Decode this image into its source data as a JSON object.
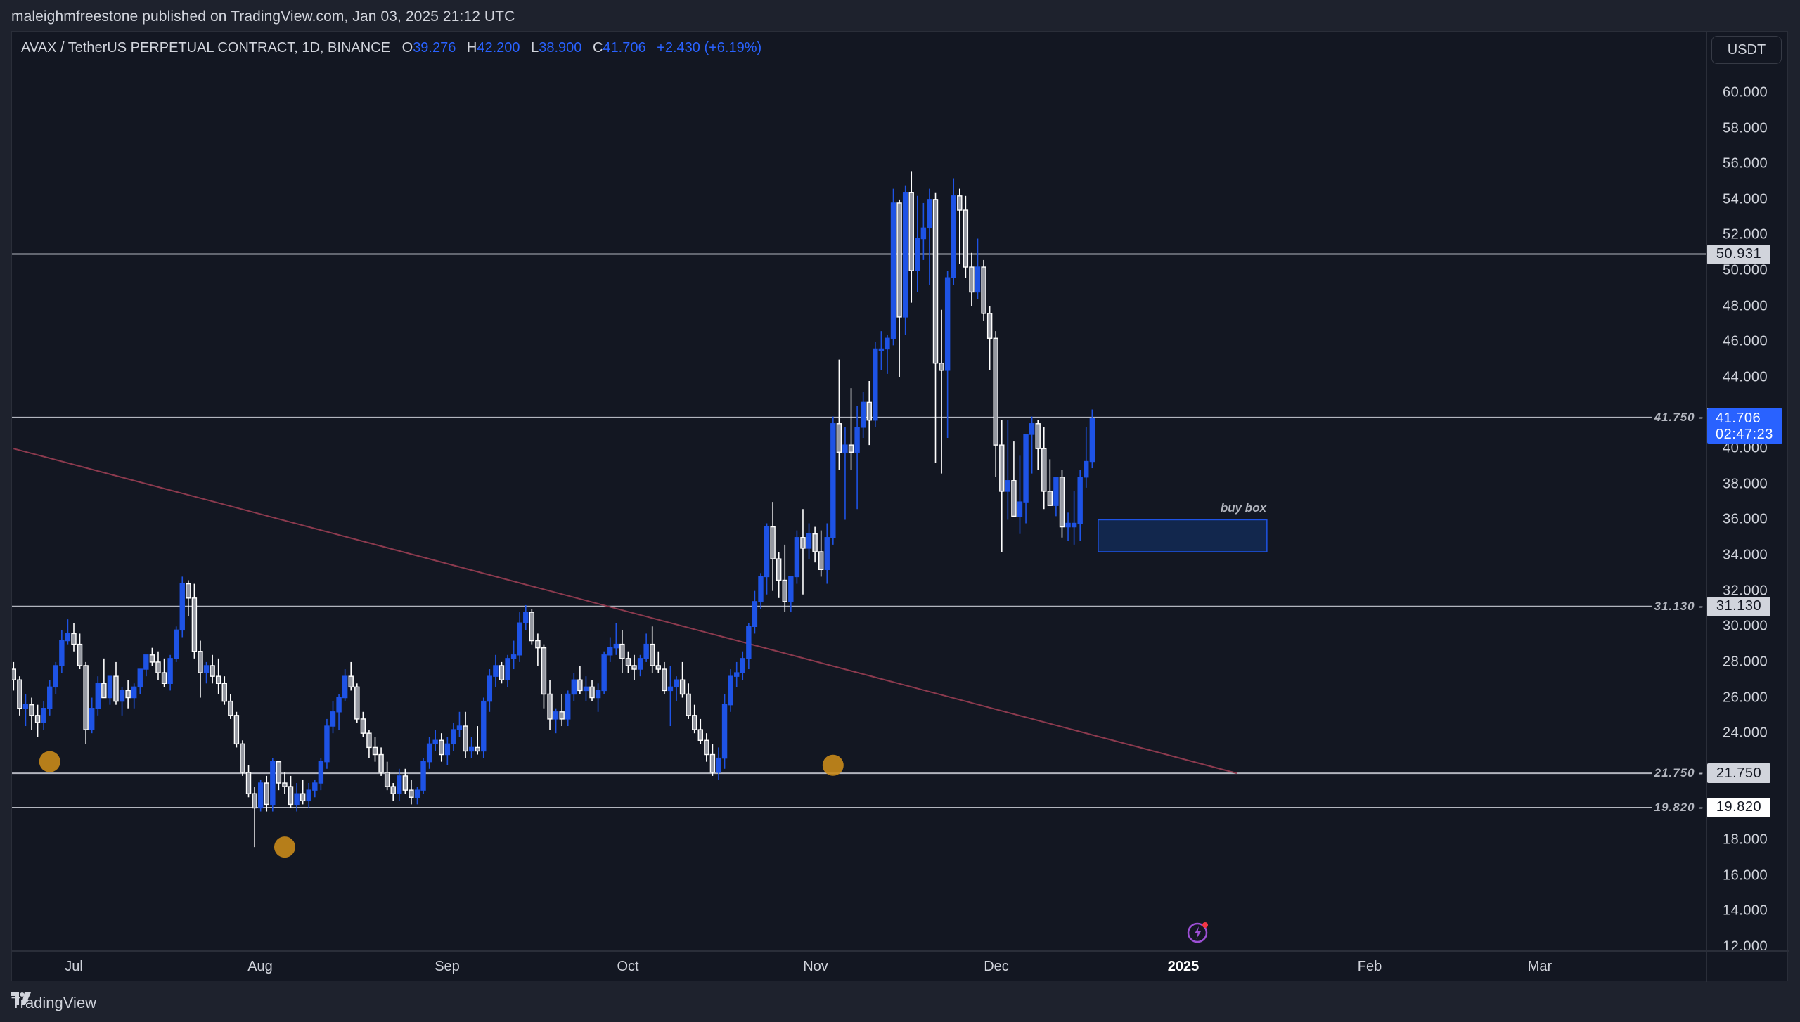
{
  "header": {
    "publish_line": "maleighmfreestone published on TradingView.com, Jan 03, 2025 21:12 UTC"
  },
  "legend": {
    "symbol": "AVAX / TetherUS PERPETUAL CONTRACT, 1D, BINANCE",
    "o_label": "O",
    "o_value": "39.276",
    "h_label": "H",
    "h_value": "42.200",
    "l_label": "L",
    "l_value": "38.900",
    "c_label": "C",
    "c_value": "41.706",
    "change": "+2.430 (+6.19%)"
  },
  "price_axis": {
    "currency_button": "USDT",
    "ticks": [
      "60.000",
      "58.000",
      "56.000",
      "54.000",
      "52.000",
      "50.000",
      "48.000",
      "46.000",
      "44.000",
      "40.000",
      "38.000",
      "36.000",
      "34.000",
      "32.000",
      "30.000",
      "28.000",
      "26.000",
      "24.000",
      "18.000",
      "16.000",
      "14.000",
      "12.000"
    ],
    "last_price": "41.706",
    "countdown": "02:47:23"
  },
  "time_axis": {
    "labels": [
      "Jul",
      "Aug",
      "Sep",
      "Oct",
      "Nov",
      "Dec",
      "2025",
      "Feb",
      "Mar"
    ]
  },
  "levels": [
    {
      "price": 50.931,
      "label": "50.931",
      "inline": ""
    },
    {
      "price": 41.75,
      "label": "41.750",
      "inline": "41.750"
    },
    {
      "price": 31.13,
      "label": "31.130",
      "inline": "31.130"
    },
    {
      "price": 21.75,
      "label": "21.750",
      "inline": "21.750"
    },
    {
      "price": 19.82,
      "label": "19.820",
      "inline": "19.820",
      "white": true
    }
  ],
  "annotations": {
    "buy_box_label": "buy box"
  },
  "footer": {
    "brand": "TradingView"
  },
  "colors": {
    "background": "#131722",
    "up_candle": "#1e53e5",
    "down_candle_fill": "#9598a1",
    "down_candle_border": "#ffffff",
    "level_line": "#b2b5be",
    "trendline": "#8c3a4e",
    "marker": "#c98a1a",
    "buy_box_fill": "#132a55",
    "buy_box_border": "#1e53e5",
    "last_price_bg": "#2962ff"
  },
  "chart_data": {
    "type": "candlestick",
    "title": "AVAX / TetherUS PERPETUAL CONTRACT, 1D, BINANCE",
    "xlabel": "",
    "ylabel": "USDT",
    "ylim": [
      12,
      60
    ],
    "x_ticks": [
      "Jul",
      "Aug",
      "Sep",
      "Oct",
      "Nov",
      "Dec",
      "2025",
      "Feb",
      "Mar"
    ],
    "y_ticks": [
      12,
      14,
      16,
      18,
      20,
      22,
      24,
      26,
      28,
      30,
      32,
      34,
      36,
      38,
      40,
      42,
      44,
      46,
      48,
      50,
      52,
      54,
      56,
      58,
      60
    ],
    "grid": false,
    "start_date": "2024-06-21",
    "last_ohlc": {
      "open": 39.276,
      "high": 42.2,
      "low": 38.9,
      "close": 41.706,
      "change": 2.43,
      "change_pct": 6.19
    },
    "horizontal_levels": [
      50.931,
      41.75,
      31.13,
      21.75,
      19.82
    ],
    "trendline": {
      "from": {
        "date": "2024-06-21",
        "price": 40.0
      },
      "to": {
        "date": "2025-01-10",
        "price": 21.75
      }
    },
    "buy_box": {
      "from_date": "2024-12-18",
      "to_date": "2025-01-15",
      "top": 36.0,
      "bottom": 34.2,
      "label": "buy box"
    },
    "markers": [
      {
        "date": "2024-06-27",
        "price": 22.4
      },
      {
        "date": "2024-08-05",
        "price": 17.6
      },
      {
        "date": "2024-11-04",
        "price": 22.2
      }
    ],
    "candles": [
      [
        27.6,
        28.0,
        26.4,
        27.0
      ],
      [
        27.0,
        27.2,
        25.0,
        25.4
      ],
      [
        25.4,
        26.2,
        24.4,
        25.6
      ],
      [
        25.6,
        26.0,
        24.2,
        25.0
      ],
      [
        25.0,
        25.6,
        23.8,
        24.6
      ],
      [
        24.6,
        25.8,
        24.2,
        25.4
      ],
      [
        25.4,
        27.0,
        25.0,
        26.6
      ],
      [
        26.6,
        28.0,
        26.2,
        27.8
      ],
      [
        27.8,
        29.8,
        27.4,
        29.2
      ],
      [
        29.2,
        30.4,
        29.0,
        29.6
      ],
      [
        29.6,
        30.2,
        28.6,
        29.0
      ],
      [
        29.0,
        29.6,
        27.6,
        27.8
      ],
      [
        27.8,
        28.0,
        23.4,
        24.2
      ],
      [
        24.2,
        26.0,
        24.0,
        25.4
      ],
      [
        25.4,
        27.2,
        25.0,
        26.8
      ],
      [
        26.8,
        28.2,
        26.0,
        26.0
      ],
      [
        26.0,
        27.2,
        25.6,
        27.2
      ],
      [
        27.2,
        28.0,
        25.6,
        25.8
      ],
      [
        25.8,
        26.6,
        25.0,
        26.4
      ],
      [
        26.4,
        27.0,
        25.4,
        26.0
      ],
      [
        26.0,
        26.8,
        25.4,
        26.6
      ],
      [
        26.6,
        27.6,
        26.2,
        27.6
      ],
      [
        27.6,
        28.4,
        27.2,
        28.4
      ],
      [
        28.4,
        28.8,
        27.8,
        28.0
      ],
      [
        28.0,
        28.6,
        27.0,
        27.4
      ],
      [
        27.4,
        28.2,
        26.6,
        26.8
      ],
      [
        26.8,
        28.4,
        26.4,
        28.2
      ],
      [
        28.2,
        30.0,
        28.0,
        29.8
      ],
      [
        29.8,
        32.8,
        29.4,
        32.4
      ],
      [
        32.4,
        32.6,
        30.6,
        31.6
      ],
      [
        31.6,
        32.4,
        28.2,
        28.6
      ],
      [
        28.6,
        29.2,
        26.0,
        27.4
      ],
      [
        27.4,
        28.0,
        26.8,
        27.8
      ],
      [
        27.8,
        28.4,
        26.8,
        27.2
      ],
      [
        27.2,
        28.2,
        26.2,
        26.8
      ],
      [
        26.8,
        27.2,
        25.6,
        25.8
      ],
      [
        25.8,
        26.2,
        24.8,
        25.0
      ],
      [
        25.0,
        25.2,
        23.2,
        23.4
      ],
      [
        23.4,
        23.6,
        21.6,
        21.8
      ],
      [
        21.8,
        22.2,
        20.4,
        20.6
      ],
      [
        20.6,
        21.0,
        17.6,
        19.8
      ],
      [
        19.8,
        21.4,
        19.6,
        21.2
      ],
      [
        21.2,
        21.6,
        19.6,
        20.0
      ],
      [
        20.0,
        22.6,
        19.6,
        22.4
      ],
      [
        22.4,
        22.4,
        20.8,
        21.2
      ],
      [
        21.2,
        21.8,
        20.6,
        21.0
      ],
      [
        21.0,
        21.6,
        19.8,
        20.0
      ],
      [
        20.0,
        21.2,
        19.6,
        20.6
      ],
      [
        20.6,
        21.4,
        20.0,
        20.2
      ],
      [
        20.2,
        21.2,
        19.8,
        20.8
      ],
      [
        20.8,
        21.4,
        20.4,
        21.2
      ],
      [
        21.2,
        22.6,
        20.8,
        22.4
      ],
      [
        22.4,
        24.8,
        22.0,
        24.4
      ],
      [
        24.4,
        25.8,
        24.0,
        25.2
      ],
      [
        25.2,
        26.2,
        24.2,
        26.0
      ],
      [
        26.0,
        27.6,
        25.8,
        27.2
      ],
      [
        27.2,
        28.0,
        26.4,
        26.6
      ],
      [
        26.6,
        26.8,
        24.6,
        24.8
      ],
      [
        24.8,
        25.2,
        23.8,
        24.0
      ],
      [
        24.0,
        24.2,
        22.6,
        23.2
      ],
      [
        23.2,
        23.8,
        22.4,
        22.8
      ],
      [
        22.8,
        23.2,
        21.6,
        21.8
      ],
      [
        21.8,
        22.4,
        20.8,
        21.0
      ],
      [
        21.0,
        21.2,
        20.2,
        20.6
      ],
      [
        20.6,
        22.0,
        20.2,
        21.6
      ],
      [
        21.6,
        22.0,
        20.6,
        20.8
      ],
      [
        20.8,
        21.4,
        20.0,
        20.4
      ],
      [
        20.4,
        21.0,
        20.0,
        20.8
      ],
      [
        20.8,
        22.6,
        20.6,
        22.4
      ],
      [
        22.4,
        23.8,
        22.0,
        23.4
      ],
      [
        23.4,
        24.2,
        23.0,
        23.6
      ],
      [
        23.6,
        24.0,
        22.4,
        22.8
      ],
      [
        22.8,
        23.8,
        22.2,
        23.4
      ],
      [
        23.4,
        24.6,
        23.0,
        24.2
      ],
      [
        24.2,
        25.2,
        23.8,
        24.4
      ],
      [
        24.4,
        25.2,
        22.6,
        23.0
      ],
      [
        23.0,
        23.8,
        22.6,
        23.2
      ],
      [
        23.2,
        24.4,
        22.8,
        23.0
      ],
      [
        23.0,
        26.0,
        22.6,
        25.8
      ],
      [
        25.8,
        27.6,
        25.2,
        27.2
      ],
      [
        27.2,
        28.4,
        26.6,
        27.8
      ],
      [
        27.8,
        28.0,
        26.8,
        27.0
      ],
      [
        27.0,
        28.4,
        26.6,
        28.2
      ],
      [
        28.2,
        29.2,
        27.6,
        28.4
      ],
      [
        28.4,
        30.8,
        28.0,
        30.2
      ],
      [
        30.2,
        31.2,
        29.8,
        30.8
      ],
      [
        30.8,
        31.0,
        29.0,
        29.2
      ],
      [
        29.2,
        29.6,
        27.8,
        28.8
      ],
      [
        28.8,
        29.0,
        25.4,
        26.2
      ],
      [
        26.2,
        27.0,
        24.2,
        24.8
      ],
      [
        24.8,
        25.4,
        24.0,
        25.2
      ],
      [
        25.2,
        26.2,
        24.4,
        24.8
      ],
      [
        24.8,
        26.4,
        24.4,
        26.2
      ],
      [
        26.2,
        27.4,
        25.8,
        27.0
      ],
      [
        27.0,
        27.8,
        26.2,
        26.4
      ],
      [
        26.4,
        27.2,
        25.8,
        26.6
      ],
      [
        26.6,
        27.0,
        25.8,
        26.0
      ],
      [
        26.0,
        26.8,
        25.2,
        26.4
      ],
      [
        26.4,
        28.6,
        26.2,
        28.4
      ],
      [
        28.4,
        29.4,
        28.0,
        28.8
      ],
      [
        28.8,
        30.2,
        28.4,
        29.0
      ],
      [
        29.0,
        29.8,
        27.4,
        28.2
      ],
      [
        28.2,
        28.6,
        27.4,
        27.8
      ],
      [
        27.8,
        28.4,
        27.0,
        27.6
      ],
      [
        27.6,
        28.4,
        27.2,
        28.2
      ],
      [
        28.2,
        29.6,
        28.0,
        29.0
      ],
      [
        29.0,
        30.0,
        27.4,
        27.8
      ],
      [
        27.8,
        28.6,
        27.4,
        27.6
      ],
      [
        27.6,
        28.0,
        26.2,
        26.4
      ],
      [
        26.4,
        27.8,
        24.4,
        26.6
      ],
      [
        26.6,
        27.2,
        25.8,
        27.0
      ],
      [
        27.0,
        28.0,
        26.0,
        26.2
      ],
      [
        26.2,
        26.8,
        24.8,
        25.0
      ],
      [
        25.0,
        25.6,
        24.0,
        24.2
      ],
      [
        24.2,
        24.8,
        23.4,
        23.6
      ],
      [
        23.6,
        24.0,
        22.4,
        22.8
      ],
      [
        22.8,
        23.4,
        21.6,
        21.8
      ],
      [
        21.8,
        23.2,
        21.4,
        22.6
      ],
      [
        22.6,
        26.2,
        22.0,
        25.6
      ],
      [
        25.6,
        27.6,
        25.2,
        27.2
      ],
      [
        27.2,
        28.0,
        26.6,
        27.4
      ],
      [
        27.4,
        28.6,
        27.0,
        28.2
      ],
      [
        28.2,
        30.2,
        27.6,
        30.0
      ],
      [
        30.0,
        32.0,
        29.6,
        31.4
      ],
      [
        31.4,
        33.0,
        31.0,
        32.8
      ],
      [
        32.8,
        35.8,
        31.8,
        35.6
      ],
      [
        35.6,
        37.0,
        32.0,
        33.8
      ],
      [
        33.8,
        34.2,
        31.6,
        32.6
      ],
      [
        32.6,
        34.6,
        30.8,
        31.4
      ],
      [
        31.4,
        32.8,
        30.8,
        32.8
      ],
      [
        32.8,
        35.4,
        32.4,
        35.0
      ],
      [
        35.0,
        36.6,
        31.8,
        34.4
      ],
      [
        34.4,
        35.8,
        33.8,
        35.2
      ],
      [
        35.2,
        35.6,
        33.6,
        34.2
      ],
      [
        34.2,
        35.4,
        32.8,
        33.2
      ],
      [
        33.2,
        35.8,
        32.4,
        35.0
      ],
      [
        35.0,
        41.8,
        34.6,
        41.4
      ],
      [
        41.4,
        45.0,
        38.8,
        39.8
      ],
      [
        39.8,
        41.2,
        36.0,
        40.2
      ],
      [
        40.2,
        43.4,
        38.8,
        39.8
      ],
      [
        39.8,
        42.4,
        36.6,
        41.2
      ],
      [
        41.2,
        43.2,
        40.6,
        42.6
      ],
      [
        42.6,
        43.8,
        40.2,
        41.6
      ],
      [
        41.6,
        46.0,
        41.2,
        45.6
      ],
      [
        45.6,
        46.6,
        44.4,
        45.6
      ],
      [
        45.6,
        46.4,
        44.2,
        46.2
      ],
      [
        46.2,
        54.6,
        45.8,
        53.8
      ],
      [
        53.8,
        54.0,
        44.0,
        47.4
      ],
      [
        47.4,
        54.8,
        46.4,
        54.4
      ],
      [
        54.4,
        55.6,
        48.2,
        50.0
      ],
      [
        50.0,
        54.2,
        48.8,
        51.8
      ],
      [
        51.8,
        53.8,
        50.6,
        52.4
      ],
      [
        52.4,
        54.6,
        49.2,
        54.0
      ],
      [
        54.0,
        54.4,
        39.2,
        44.8
      ],
      [
        44.8,
        47.8,
        38.6,
        44.4
      ],
      [
        44.4,
        50.0,
        40.6,
        49.6
      ],
      [
        49.6,
        55.2,
        49.2,
        54.2
      ],
      [
        54.2,
        54.6,
        50.4,
        53.4
      ],
      [
        53.4,
        54.2,
        49.6,
        50.2
      ],
      [
        50.2,
        51.0,
        48.0,
        48.8
      ],
      [
        48.8,
        51.8,
        48.4,
        50.2
      ],
      [
        50.2,
        50.6,
        47.2,
        47.6
      ],
      [
        47.6,
        48.0,
        44.4,
        46.2
      ],
      [
        46.2,
        46.6,
        38.4,
        40.2
      ],
      [
        40.2,
        41.6,
        34.2,
        37.6
      ],
      [
        37.6,
        41.6,
        36.0,
        38.2
      ],
      [
        38.2,
        40.4,
        36.8,
        36.2
      ],
      [
        36.2,
        39.6,
        35.2,
        37.0
      ],
      [
        37.0,
        40.2,
        35.8,
        40.8
      ],
      [
        40.8,
        41.8,
        38.6,
        41.4
      ],
      [
        41.4,
        41.6,
        38.8,
        40.0
      ],
      [
        40.0,
        41.2,
        36.6,
        37.6
      ],
      [
        37.6,
        39.4,
        36.8,
        36.8
      ],
      [
        36.8,
        38.4,
        36.2,
        38.4
      ],
      [
        38.4,
        38.8,
        35.0,
        35.6
      ],
      [
        35.6,
        36.4,
        34.8,
        35.8
      ],
      [
        35.6,
        37.6,
        34.6,
        35.8
      ],
      [
        35.8,
        38.8,
        34.8,
        38.4
      ],
      [
        38.4,
        41.2,
        37.8,
        39.276
      ],
      [
        39.276,
        42.2,
        38.9,
        41.706
      ]
    ]
  }
}
